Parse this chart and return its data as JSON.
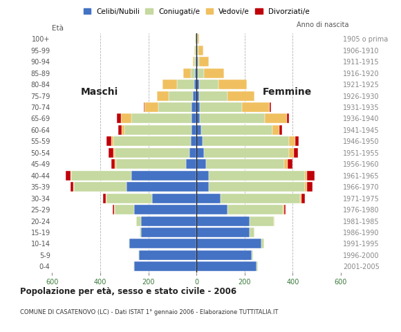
{
  "age_groups": [
    "0-4",
    "5-9",
    "10-14",
    "15-19",
    "20-24",
    "25-29",
    "30-34",
    "35-39",
    "40-44",
    "45-49",
    "50-54",
    "55-59",
    "60-64",
    "65-69",
    "70-74",
    "75-79",
    "80-84",
    "85-89",
    "90-94",
    "95-99",
    "100+"
  ],
  "birth_years": [
    "2001-2005",
    "1996-2000",
    "1991-1995",
    "1986-1990",
    "1981-1985",
    "1976-1980",
    "1971-1975",
    "1966-1970",
    "1961-1965",
    "1956-1960",
    "1951-1955",
    "1946-1950",
    "1941-1945",
    "1936-1940",
    "1931-1935",
    "1926-1930",
    "1921-1925",
    "1916-1920",
    "1911-1915",
    "1906-1910",
    "1905 o prima"
  ],
  "males": {
    "celibi": [
      260,
      240,
      280,
      230,
      230,
      260,
      185,
      290,
      270,
      45,
      30,
      25,
      20,
      20,
      20,
      15,
      10,
      5,
      4,
      2,
      2
    ],
    "coniugati": [
      2,
      2,
      3,
      5,
      20,
      80,
      190,
      220,
      250,
      290,
      310,
      320,
      280,
      250,
      140,
      100,
      70,
      20,
      5,
      5,
      3
    ],
    "vedovi": [
      0,
      0,
      0,
      0,
      0,
      2,
      3,
      3,
      5,
      5,
      5,
      10,
      10,
      45,
      55,
      50,
      60,
      30,
      5,
      2,
      0
    ],
    "divorziati": [
      0,
      0,
      0,
      0,
      0,
      5,
      10,
      10,
      20,
      15,
      20,
      18,
      15,
      15,
      5,
      0,
      0,
      0,
      0,
      0,
      0
    ]
  },
  "females": {
    "nubili": [
      250,
      230,
      270,
      220,
      220,
      130,
      100,
      50,
      50,
      40,
      30,
      25,
      20,
      15,
      15,
      10,
      10,
      5,
      4,
      2,
      2
    ],
    "coniugate": [
      5,
      5,
      10,
      20,
      100,
      230,
      330,
      400,
      400,
      325,
      355,
      360,
      295,
      270,
      175,
      120,
      80,
      25,
      8,
      5,
      3
    ],
    "vedove": [
      0,
      0,
      0,
      0,
      3,
      5,
      5,
      8,
      10,
      15,
      20,
      25,
      30,
      90,
      115,
      110,
      120,
      85,
      40,
      20,
      5
    ],
    "divorziate": [
      0,
      0,
      0,
      0,
      0,
      5,
      15,
      25,
      30,
      20,
      18,
      15,
      10,
      10,
      5,
      0,
      0,
      0,
      0,
      0,
      0
    ]
  },
  "colors": {
    "celibi_nubili": "#4472c4",
    "coniugati": "#c5d9a0",
    "vedovi": "#f0c060",
    "divorziati": "#c0000a"
  },
  "title": "Popolazione per età, sesso e stato civile - 2006",
  "subtitle": "COMUNE DI CASATENOVO (LC) - Dati ISTAT 1° gennaio 2006 - Elaborazione TUTTITALIA.IT",
  "xlabel_left": "Maschi",
  "xlabel_right": "Femmine",
  "ylabel_left": "Età",
  "ylabel_right": "Anno di nascita",
  "xlim": 600,
  "background_color": "#ffffff",
  "legend_labels": [
    "Celibi/Nubili",
    "Coniugati/e",
    "Vedovi/e",
    "Divorziati/e"
  ]
}
